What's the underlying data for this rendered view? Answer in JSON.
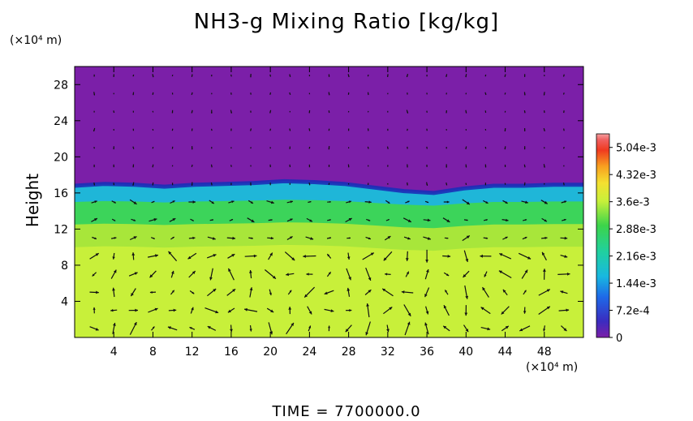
{
  "chart_data": {
    "type": "heatmap",
    "title": "NH3-g Mixing Ratio [kg/kg]",
    "ylabel": "Height",
    "y_unit": "(×10⁴ m)",
    "x_unit": "(×10⁴ m)",
    "xlim": [
      0,
      52
    ],
    "ylim": [
      0,
      30
    ],
    "x_ticks": [
      "4",
      "8",
      "12",
      "16",
      "20",
      "24",
      "28",
      "32",
      "36",
      "40",
      "44",
      "48"
    ],
    "y_ticks": [
      "4",
      "8",
      "12",
      "16",
      "20",
      "24",
      "28"
    ],
    "colorbar": {
      "min": 0,
      "max": 0.0054,
      "tick_labels": [
        "0",
        "7.2e-4",
        "1.44e-3",
        "2.16e-3",
        "2.88e-3",
        "3.6e-3",
        "4.32e-3",
        "5.04e-3"
      ],
      "tick_values": [
        0,
        0.00072,
        0.00144,
        0.00216,
        0.00288,
        0.0036,
        0.00432,
        0.00504
      ]
    },
    "layers": [
      {
        "y_from": 0,
        "y_to": 10,
        "value": 0.0036,
        "color": "#c8f03a"
      },
      {
        "y_from": 10,
        "y_to": 12.5,
        "value": 0.0032,
        "color": "#a8e63a"
      },
      {
        "y_from": 12.5,
        "y_to": 15,
        "value": 0.0026,
        "color": "#3cd45a"
      },
      {
        "y_from": 15,
        "y_to": 16.8,
        "value": 0.0015,
        "color": "#1fb6d8"
      },
      {
        "y_from": 16.8,
        "y_to": 30,
        "value": 0,
        "color": "#7b1fa8"
      }
    ],
    "boundary_height": [
      16.8,
      17.0,
      16.9,
      16.7,
      16.9,
      17.0,
      17.1,
      17.3,
      17.2,
      17.0,
      16.6,
      16.2,
      16.0,
      16.5,
      16.8,
      16.8,
      16.9,
      16.9
    ],
    "grid": false,
    "has_vector_field": true
  },
  "time_label": "TIME  =  7700000.0"
}
